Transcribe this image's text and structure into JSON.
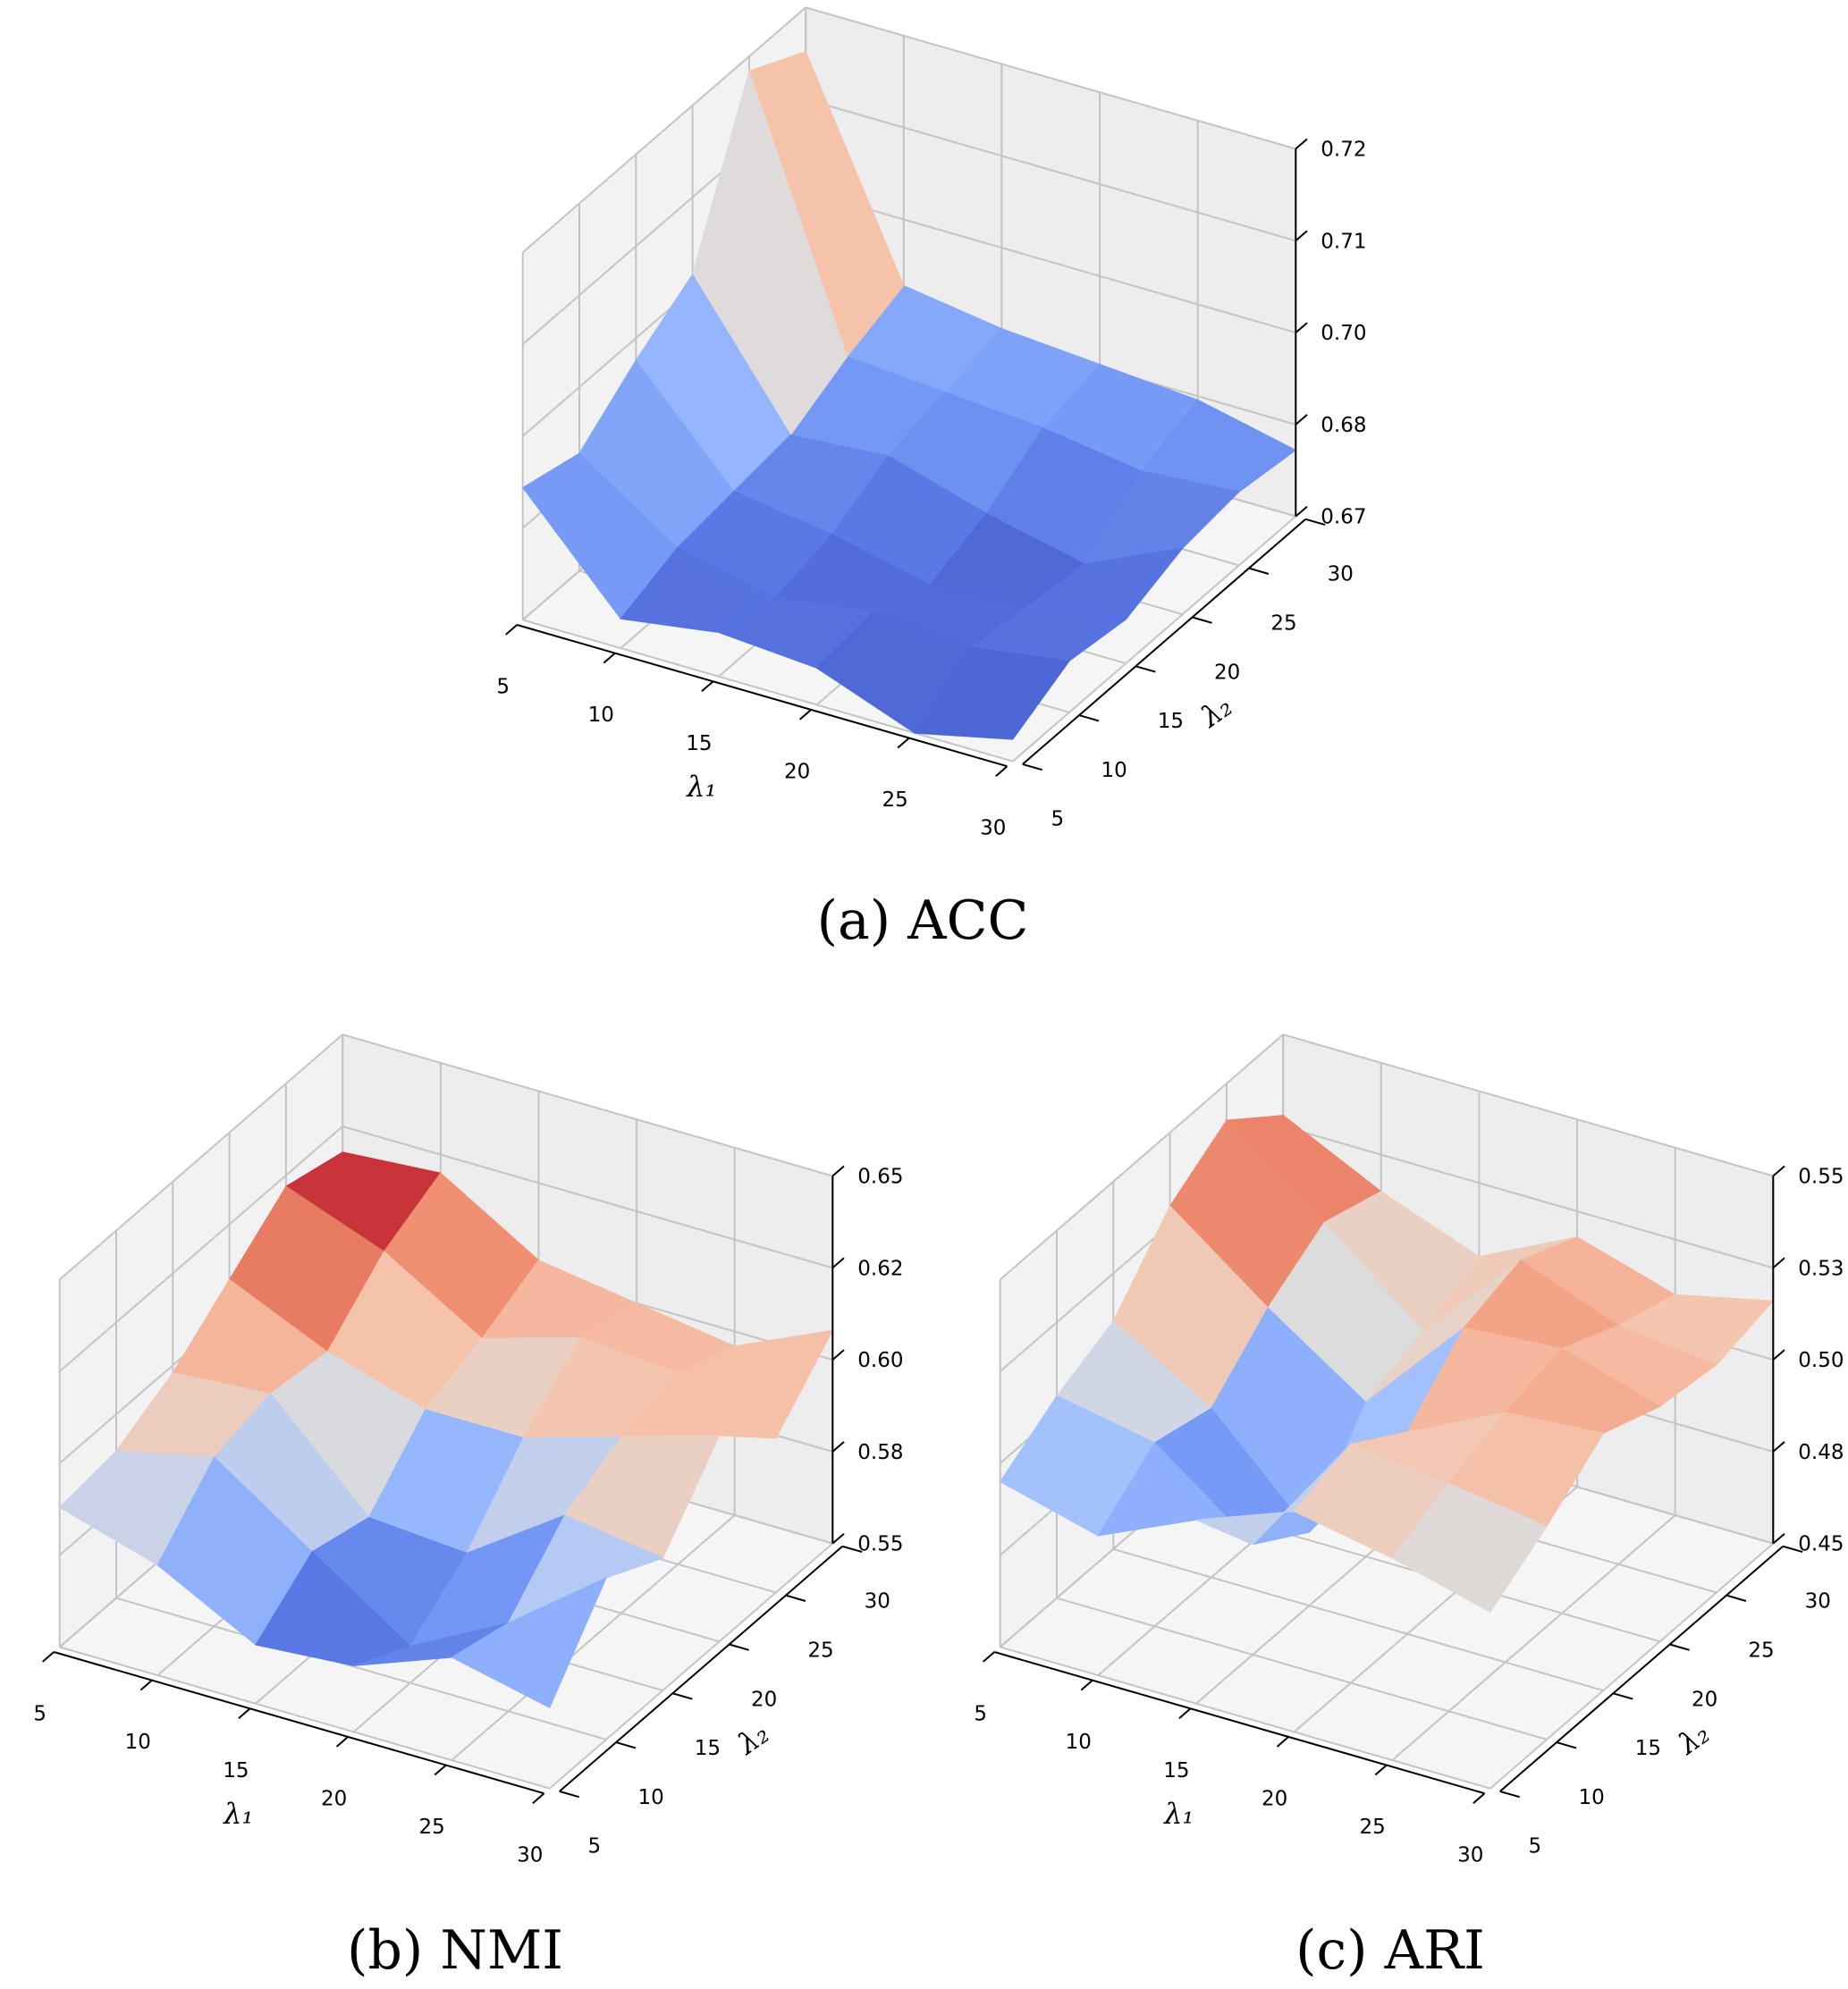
{
  "chart_data": [
    {
      "type": "surface",
      "caption": "(a)  ACC",
      "xlabel": "λ₁",
      "ylabel": "λ₂",
      "x": [
        5,
        10,
        15,
        20,
        25,
        30
      ],
      "y": [
        5,
        10,
        15,
        20,
        25,
        30
      ],
      "xticklabels": [
        "5",
        "10",
        "15",
        "20",
        "25",
        "30"
      ],
      "yticklabels": [
        "5",
        "10",
        "15",
        "20",
        "25",
        "30"
      ],
      "zlim": [
        0.67,
        0.72
      ],
      "zticks": [
        0.67,
        0.6825,
        0.695,
        0.7075,
        0.72
      ],
      "zticklabels": [
        "0.67",
        "0.68",
        "0.70",
        "0.71",
        "0.72"
      ],
      "colormap": "coolwarm",
      "z": [
        [
          0.688,
          0.686,
          0.692,
          0.697,
          0.718,
          0.714
        ],
        [
          0.674,
          0.677,
          0.678,
          0.679,
          0.683,
          0.686
        ],
        [
          0.676,
          0.674,
          0.676,
          0.68,
          0.682,
          0.684
        ],
        [
          0.675,
          0.676,
          0.673,
          0.676,
          0.681,
          0.683
        ],
        [
          0.67,
          0.675,
          0.674,
          0.673,
          0.679,
          0.682
        ],
        [
          0.673,
          0.677,
          0.676,
          0.679,
          0.68,
          0.679
        ]
      ]
    },
    {
      "type": "surface",
      "caption": "(b)  NMI",
      "xlabel": "λ₁",
      "ylabel": "λ₂",
      "x": [
        5,
        10,
        15,
        20,
        25,
        30
      ],
      "y": [
        5,
        10,
        15,
        20,
        25,
        30
      ],
      "xticklabels": [
        "5",
        "10",
        "15",
        "20",
        "25",
        "30"
      ],
      "yticklabels": [
        "5",
        "10",
        "15",
        "20",
        "25",
        "30"
      ],
      "zlim": [
        0.55,
        0.65
      ],
      "zticks": [
        0.55,
        0.575,
        0.6,
        0.625,
        0.65
      ],
      "zticklabels": [
        "0.55",
        "0.58",
        "0.60",
        "0.62",
        "0.65"
      ],
      "colormap": "coolwarm",
      "z": [
        [
          0.588,
          0.59,
          0.598,
          0.61,
          0.622,
          0.618
        ],
        [
          0.58,
          0.596,
          0.6,
          0.598,
          0.612,
          0.62
        ],
        [
          0.566,
          0.578,
          0.574,
          0.59,
          0.596,
          0.604
        ],
        [
          0.568,
          0.56,
          0.572,
          0.59,
          0.604,
          0.6
        ],
        [
          0.578,
          0.574,
          0.59,
          0.598,
          0.602,
          0.596
        ],
        [
          0.572,
          0.594,
          0.586,
          0.606,
          0.592,
          0.608
        ]
      ]
    },
    {
      "type": "surface",
      "caption": "(c)  ARI",
      "xlabel": "λ₁",
      "ylabel": "λ₂",
      "x": [
        5,
        10,
        15,
        20,
        25,
        30
      ],
      "y": [
        5,
        10,
        15,
        20,
        25,
        30
      ],
      "xticklabels": [
        "5",
        "10",
        "15",
        "20",
        "25",
        "30"
      ],
      "yticklabels": [
        "5",
        "10",
        "15",
        "20",
        "25",
        "30"
      ],
      "zlim": [
        0.45,
        0.55
      ],
      "zticks": [
        0.45,
        0.475,
        0.5,
        0.525,
        0.55
      ],
      "zticklabels": [
        "0.45",
        "0.48",
        "0.50",
        "0.53",
        "0.55"
      ],
      "colormap": "coolwarm",
      "z": [
        [
          0.495,
          0.505,
          0.512,
          0.53,
          0.54,
          0.528
        ],
        [
          0.488,
          0.5,
          0.496,
          0.51,
          0.52,
          0.515
        ],
        [
          0.5,
          0.48,
          0.47,
          0.492,
          0.498,
          0.505
        ],
        [
          0.51,
          0.515,
          0.505,
          0.52,
          0.525,
          0.518
        ],
        [
          0.505,
          0.512,
          0.518,
          0.522,
          0.515,
          0.51
        ],
        [
          0.498,
          0.508,
          0.52,
          0.514,
          0.512,
          0.516
        ]
      ]
    }
  ]
}
